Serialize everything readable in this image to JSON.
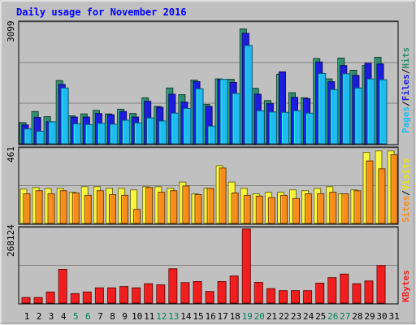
{
  "chart_data": [
    {
      "type": "bar",
      "panel": "top",
      "title": "Daily usage for November 2016",
      "y_max_label": "3099",
      "ylim": [
        0,
        3099
      ],
      "categories": [
        "1",
        "2",
        "3",
        "4",
        "5",
        "6",
        "7",
        "8",
        "9",
        "10",
        "11",
        "12",
        "13",
        "14",
        "15",
        "16",
        "17",
        "18",
        "19",
        "20",
        "21",
        "22",
        "23",
        "24",
        "25",
        "26",
        "27",
        "28",
        "29",
        "30",
        "31"
      ],
      "series": [
        {
          "name": "Hits",
          "color": "#2e8b6b",
          "values": [
            540,
            820,
            690,
            1610,
            710,
            760,
            850,
            760,
            880,
            770,
            1170,
            950,
            1420,
            1250,
            1620,
            1000,
            1650,
            1640,
            2920,
            1410,
            1100,
            1770,
            1300,
            1170,
            2170,
            1650,
            2180,
            1870,
            1990,
            2200,
            null
          ]
        },
        {
          "name": "Files",
          "color": "#1c1cdc",
          "values": [
            480,
            670,
            560,
            1510,
            680,
            680,
            770,
            740,
            820,
            680,
            1080,
            930,
            1260,
            1060,
            1580,
            950,
            1630,
            1560,
            2810,
            1260,
            1020,
            1830,
            1180,
            1150,
            2080,
            1580,
            1990,
            1740,
            2050,
            2030,
            null
          ]
        },
        {
          "name": "Pages",
          "color": "#1ebaf0",
          "values": [
            380,
            320,
            560,
            1420,
            510,
            490,
            520,
            500,
            600,
            530,
            660,
            580,
            780,
            900,
            1400,
            450,
            1640,
            1280,
            2500,
            840,
            810,
            800,
            840,
            780,
            1790,
            1380,
            1780,
            1420,
            1650,
            1630,
            null
          ]
        }
      ]
    },
    {
      "type": "bar",
      "panel": "middle",
      "y_max_label": "461",
      "ylim": [
        0,
        461
      ],
      "categories": [
        "1",
        "2",
        "3",
        "4",
        "5",
        "6",
        "7",
        "8",
        "9",
        "10",
        "11",
        "12",
        "13",
        "14",
        "15",
        "16",
        "17",
        "18",
        "19",
        "20",
        "21",
        "22",
        "23",
        "24",
        "25",
        "26",
        "27",
        "28",
        "29",
        "30",
        "31"
      ],
      "series": [
        {
          "name": "Visits",
          "color": "#f7f53c",
          "values": [
            220,
            230,
            225,
            225,
            200,
            235,
            235,
            225,
            225,
            215,
            235,
            235,
            225,
            265,
            190,
            225,
            370,
            265,
            225,
            190,
            200,
            200,
            215,
            210,
            225,
            235,
            190,
            215,
            455,
            465,
            465
          ]
        },
        {
          "name": "Sites",
          "color": "#f78c1a",
          "values": [
            190,
            210,
            190,
            210,
            195,
            180,
            210,
            185,
            180,
            90,
            230,
            200,
            210,
            240,
            185,
            225,
            355,
            195,
            180,
            175,
            165,
            180,
            160,
            190,
            190,
            200,
            190,
            210,
            400,
            350,
            440
          ]
        }
      ]
    },
    {
      "type": "bar",
      "panel": "bottom",
      "y_max_label": "268124",
      "ylim": [
        0,
        268124
      ],
      "categories": [
        "1",
        "2",
        "3",
        "4",
        "5",
        "6",
        "7",
        "8",
        "9",
        "10",
        "11",
        "12",
        "13",
        "14",
        "15",
        "16",
        "17",
        "18",
        "19",
        "20",
        "21",
        "22",
        "23",
        "24",
        "25",
        "26",
        "27",
        "28",
        "29",
        "30",
        "31"
      ],
      "series": [
        {
          "name": "KBytes",
          "color": "#f01e1e",
          "values": [
            20000,
            20000,
            40000,
            122000,
            34000,
            40000,
            55000,
            55000,
            60000,
            55000,
            70000,
            66000,
            124000,
            74000,
            78000,
            42000,
            78000,
            98000,
            268124,
            75000,
            52000,
            45000,
            45000,
            45000,
            72000,
            92000,
            105000,
            70000,
            80000,
            136000,
            null
          ]
        }
      ]
    }
  ],
  "legend_top": {
    "pages": "Pages",
    "files": "Files",
    "hits": "Hits",
    "sep": "/"
  },
  "legend_mid": {
    "sites": "Sites",
    "visits": "Visits",
    "sep": "/"
  },
  "legend_bot": {
    "kbytes": "KBytes"
  },
  "colors": {
    "background": "#c0c0c0",
    "title": "#0000ff",
    "weekend_label": "#00805a",
    "weekday_label": "#000000",
    "grid": "#808080"
  },
  "weekend_days": [
    "5",
    "6",
    "12",
    "13",
    "19",
    "20",
    "26",
    "27"
  ]
}
